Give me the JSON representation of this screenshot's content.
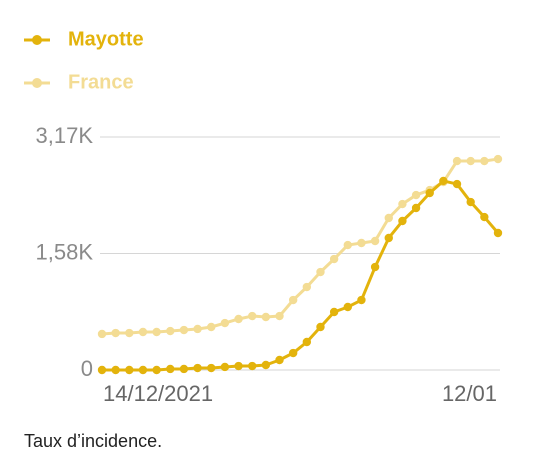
{
  "chart_data": {
    "type": "line",
    "categories": [
      "14/12/2021",
      null,
      null,
      null,
      null,
      null,
      null,
      null,
      null,
      null,
      null,
      null,
      null,
      null,
      null,
      null,
      null,
      null,
      null,
      null,
      null,
      null,
      null,
      null,
      null,
      null,
      null,
      null,
      null,
      "12/01"
    ],
    "series": [
      {
        "name": "Mayotte",
        "color": "#e3b30c",
        "values": [
          0,
          0,
          0,
          0,
          0,
          14,
          14,
          27,
          27,
          41,
          54,
          54,
          68,
          136,
          231,
          381,
          585,
          789,
          857,
          952,
          1401,
          1796,
          2027,
          2204,
          2408,
          2572,
          2530,
          2285,
          2081,
          1864
        ]
      },
      {
        "name": "France",
        "color": "#f3dc94",
        "values": [
          490,
          503,
          503,
          517,
          517,
          530,
          544,
          558,
          585,
          639,
          694,
          734,
          721,
          734,
          952,
          1129,
          1333,
          1510,
          1700,
          1728,
          1755,
          2068,
          2258,
          2380,
          2448,
          2557,
          2843,
          2843,
          2843,
          2870
        ]
      }
    ],
    "ylim": [
      0,
      3170
    ],
    "yticks": [
      0,
      {
        "value": 1585,
        "label": "1,58K"
      },
      {
        "value": 3170,
        "label": "3,17K"
      }
    ],
    "grid": true,
    "caption": "Taux d’incidence."
  }
}
